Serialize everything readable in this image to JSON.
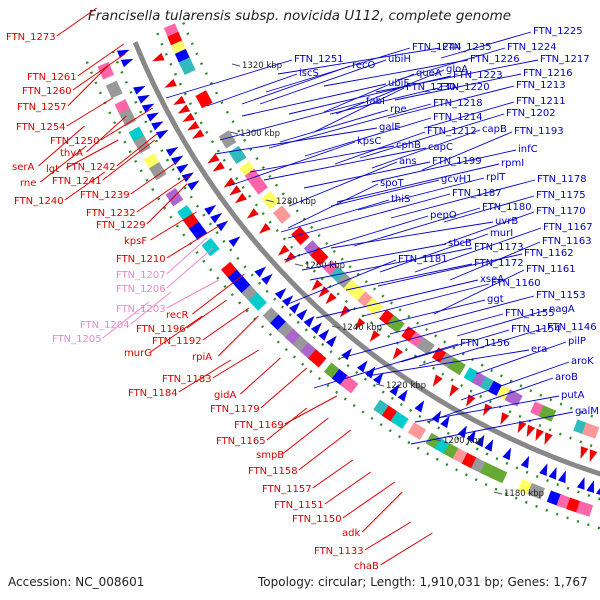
{
  "title": "Francisella tularensis subsp. novicida U112, complete genome",
  "accession": "Accession: NC_008601",
  "topology": "Topology: circular; Length: 1,910,031 bp; Genes: 1,767",
  "colors": {
    "left_gene": "#dd0000",
    "left_pink": "#ee88cc",
    "right_gene": "#0000cc",
    "backbone": "#888888"
  },
  "ticks": [
    "1320 kbp",
    "1300 kbp",
    "1280 kbp",
    "1260 kbp",
    "1240 kbp",
    "1220 kbp",
    "1200 kbp",
    "1180 kbp"
  ],
  "left_labels": [
    "FTN_1273",
    "FTN_1261",
    "FTN_1260",
    "FTN_1257",
    "FTN_1254",
    "FTN_1250",
    "thyA",
    "serA",
    "lgt",
    "FTN_1242",
    "rne",
    "FTN_1241",
    "FTN_1240",
    "FTN_1239",
    "FTN_1232",
    "FTN_1229",
    "kpsF",
    "FTN_1210",
    "FTN_1207",
    "FTN_1206",
    "FTN_1203",
    "FTN_1204",
    "FTN_1205",
    "recR",
    "FTN_1196",
    "FTN_1192",
    "murG",
    "rpiA",
    "FTN_1183",
    "FTN_1184",
    "gidA",
    "FTN_1179",
    "FTN_1169",
    "FTN_1165",
    "smpB",
    "FTN_1158",
    "FTN_1157",
    "FTN_1151",
    "FTN_1150",
    "adk",
    "FTN_1133",
    "chaB"
  ],
  "right_labels": [
    "FTN_1225",
    "FTN_1224",
    "FTN_1251",
    "FTN_1244",
    "FTN_1235",
    "iscS",
    "recO",
    "ubiH",
    "FTN_1226",
    "FTN_1217",
    "queA",
    "gloA",
    "FTN_1216",
    "ubiF",
    "FTN_1223",
    "FTN_1230",
    "FTN_1220",
    "FTN_1213",
    "fabI",
    "FTN_1218",
    "FTN_1211",
    "rpe",
    "FTN_1214",
    "FTN_1202",
    "galE",
    "FTN_1212",
    "capB",
    "kpsC",
    "cphB",
    "capC",
    "FTN_1193",
    "ans",
    "FTN_1199",
    "infC",
    "rpmI",
    "spoT",
    "gcvH1",
    "rplT",
    "FTN_1178",
    "FTN_1187",
    "FTN_1175",
    "thiS",
    "FTN_1180",
    "pepO",
    "uvrB",
    "FTN_1170",
    "murI",
    "FTN_1167",
    "sbcB",
    "FTN_1173",
    "FTN_1163",
    "FTN_1181",
    "FTN_1172",
    "FTN_1162",
    "xseA",
    "FTN_1161",
    "ggt",
    "FTN_1160",
    "FTN_1153",
    "FTN_1155",
    "nagA",
    "FTN_1154",
    "FTN_1146",
    "FTN_1156",
    "era",
    "pilP",
    "aroK",
    "aroB",
    "putA",
    "galM"
  ]
}
